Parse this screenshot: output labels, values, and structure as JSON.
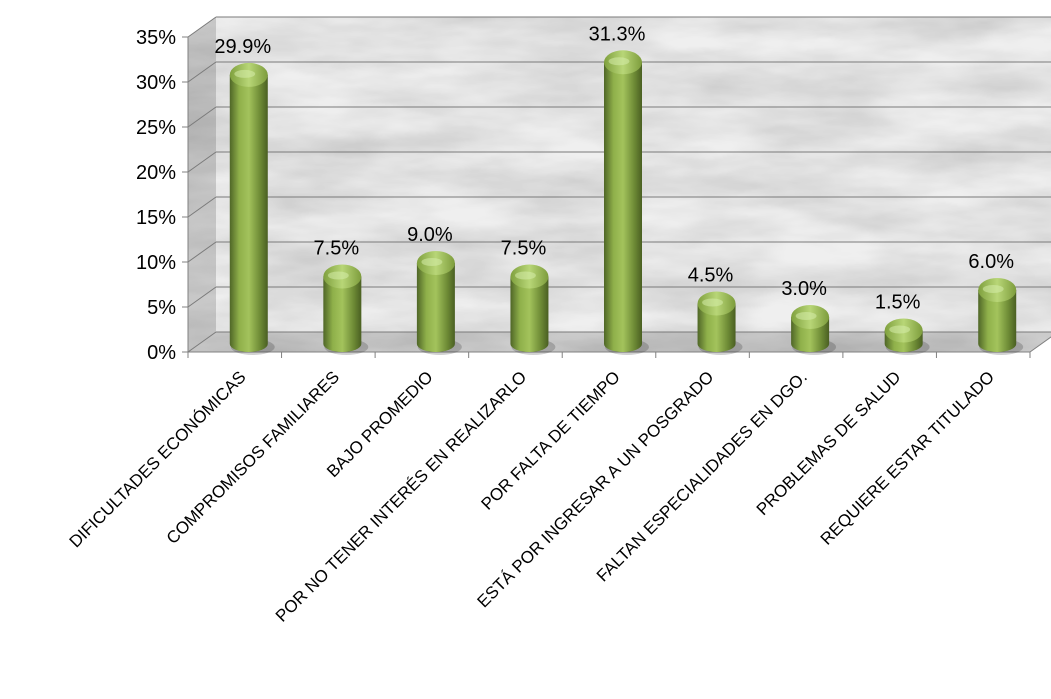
{
  "chart_data": {
    "type": "bar",
    "categories": [
      "DIFICULTADES ECONÓMICAS",
      "COMPROMISOS FAMILIARES",
      "BAJO PROMEDIO",
      "POR NO TENER INTERÉS EN REALIZARLO",
      "POR FALTA DE TIEMPO",
      "ESTÁ POR INGRESAR A UN POSGRADO",
      "FALTAN ESPECIALIDADES EN DGO.",
      "PROBLEMAS DE SALUD",
      "REQUIERE ESTAR TITULADO"
    ],
    "values": [
      29.9,
      7.5,
      9.0,
      7.5,
      31.3,
      4.5,
      3.0,
      1.5,
      6.0
    ],
    "data_labels": [
      "29.9%",
      "7.5%",
      "9.0%",
      "7.5%",
      "31.3%",
      "4.5%",
      "3.0%",
      "1.5%",
      "6.0%"
    ],
    "y_ticks": [
      0,
      5,
      10,
      15,
      20,
      25,
      30,
      35
    ],
    "y_tick_labels": [
      "0%",
      "5%",
      "10%",
      "15%",
      "20%",
      "25%",
      "30%",
      "35%"
    ],
    "ylim": [
      0,
      35
    ],
    "title": "",
    "xlabel": "",
    "ylabel": "",
    "grid": true,
    "legend": "none",
    "bar_color": "#77933c",
    "bar_shape": "3d-cylinder",
    "background": "gray marble texture"
  }
}
